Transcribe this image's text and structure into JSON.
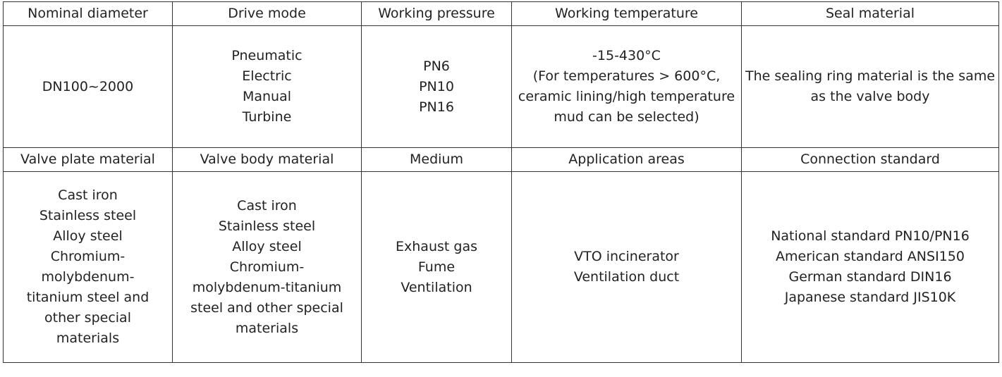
{
  "table": {
    "rows": [
      [
        "Nominal diameter",
        "Drive mode",
        "Working pressure",
        "Working temperature",
        "Seal material"
      ],
      [
        "DN100~2000",
        [
          "Pneumatic",
          "Electric",
          "Manual",
          "Turbine"
        ],
        [
          "PN6",
          "PN10",
          "PN16"
        ],
        [
          "-15-430°C",
          "(For temperatures > 600°C, ceramic lining/high temperature mud can be selected)"
        ],
        "The sealing ring material is the same as the valve body"
      ],
      [
        "Valve plate material",
        "Valve body material",
        "Medium",
        "Application areas",
        "Connection standard"
      ],
      [
        [
          "Cast iron",
          "Stainless steel",
          "Alloy steel",
          "Chromium-molybdenum-titanium steel and other special materials"
        ],
        [
          "Cast iron",
          "Stainless steel",
          "Alloy steel",
          "Chromium-molybdenum-titanium steel and other special materials"
        ],
        [
          "Exhaust gas",
          "Fume",
          "Ventilation"
        ],
        [
          "VTO incinerator",
          "Ventilation duct"
        ],
        [
          "National standard PN10/PN16",
          "American standard ANSI150",
          "German standard DIN16",
          "Japanese standard JIS10K"
        ]
      ]
    ]
  }
}
